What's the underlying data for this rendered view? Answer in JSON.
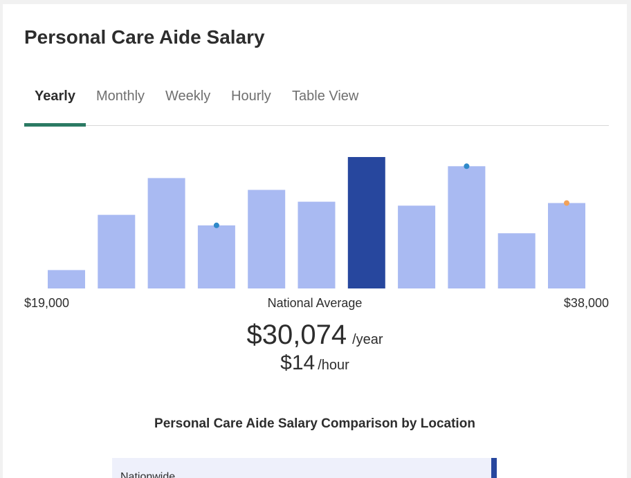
{
  "page": {
    "title": "Personal Care Aide Salary"
  },
  "tabs": [
    {
      "label": "Yearly",
      "active": true
    },
    {
      "label": "Monthly",
      "active": false
    },
    {
      "label": "Weekly",
      "active": false
    },
    {
      "label": "Hourly",
      "active": false
    },
    {
      "label": "Table View",
      "active": false
    }
  ],
  "chart_data": {
    "type": "bar",
    "relative_heights": [
      0.14,
      0.56,
      0.84,
      0.48,
      0.75,
      0.66,
      1.0,
      0.63,
      0.93,
      0.42,
      0.65
    ],
    "highlight_index": 6,
    "markers": [
      {
        "bar_index": 3,
        "color": "#2f89c9"
      },
      {
        "bar_index": 8,
        "color": "#2f89c9"
      },
      {
        "bar_index": 10,
        "color": "#f2a25a"
      }
    ],
    "colors": {
      "bar": "#a9baf2",
      "highlight": "#27479e"
    },
    "x_min_label": "$19,000",
    "x_max_label": "$38,000",
    "center_label": "National Average"
  },
  "average": {
    "yearly": "$30,074",
    "yearly_unit": "/year",
    "hourly": "$14",
    "hourly_unit": "/hour"
  },
  "comparison": {
    "title": "Personal Care Aide Salary Comparison by Location",
    "rows": [
      {
        "label": "Nationwide"
      }
    ]
  },
  "colors": {
    "tab_indicator": "#2b7a63",
    "accent": "#27479e"
  }
}
